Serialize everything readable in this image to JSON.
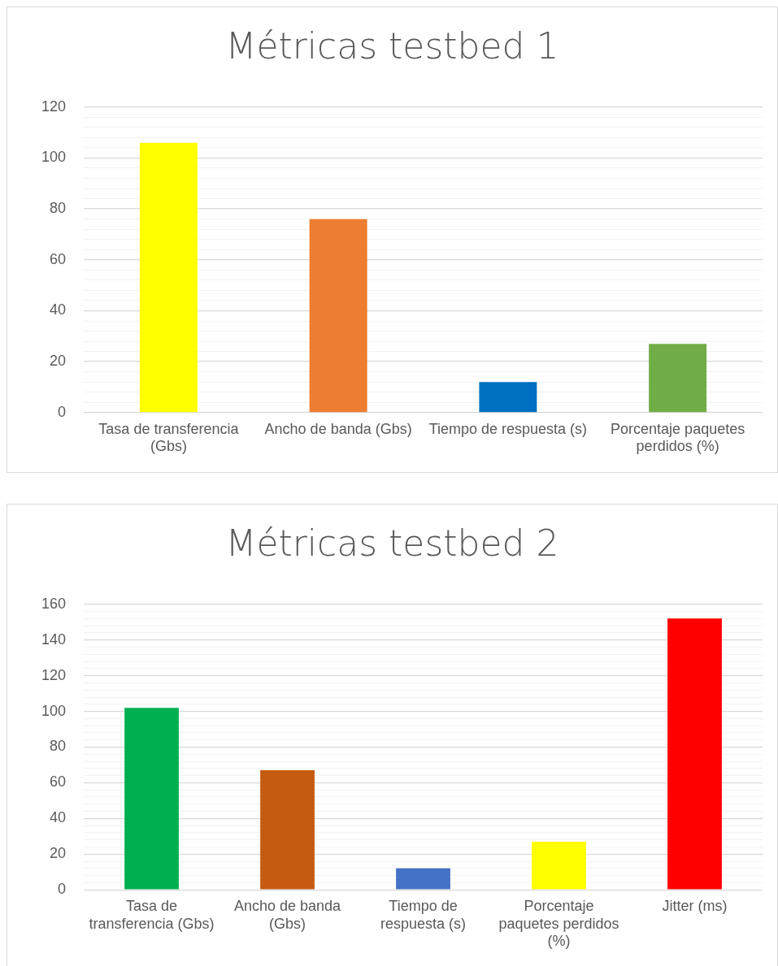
{
  "chart_data": [
    {
      "type": "bar",
      "title": "Métricas testbed 1",
      "categories": [
        "Tasa de transferencia (Gbs)",
        "Ancho de banda (Gbs)",
        "Tiempo de respuesta (s)",
        "Porcentaje paquetes perdidos (%)"
      ],
      "values": [
        106,
        76,
        12,
        27
      ],
      "colors": [
        "#ffff00",
        "#ed7d31",
        "#0070c0",
        "#70ad47"
      ],
      "ylim": [
        0,
        120
      ],
      "yticks": [
        0,
        {
          "value": 4,
          "label": null
        },
        {
          "value": 8,
          "label": null
        },
        {
          "value": 12,
          "label": null
        },
        {
          "value": 16,
          "label": null
        },
        20,
        {
          "value": 24,
          "label": null
        },
        {
          "value": 28,
          "label": null
        },
        {
          "value": 32,
          "label": null
        },
        {
          "value": 36,
          "label": null
        },
        40,
        {
          "value": 44,
          "label": null
        },
        {
          "value": 48,
          "label": null
        },
        {
          "value": 52,
          "label": null
        },
        {
          "value": 56,
          "label": null
        },
        60,
        {
          "value": 64,
          "label": null
        },
        {
          "value": 68,
          "label": null
        },
        {
          "value": 72,
          "label": null
        },
        {
          "value": 76,
          "label": null
        },
        80,
        {
          "value": 84,
          "label": null
        },
        {
          "value": 88,
          "label": null
        },
        {
          "value": 92,
          "label": null
        },
        {
          "value": 96,
          "label": null
        },
        100,
        {
          "value": 104,
          "label": null
        },
        {
          "value": 108,
          "label": null
        },
        {
          "value": 112,
          "label": null
        },
        {
          "value": 116,
          "label": null
        },
        120
      ],
      "grid": "y",
      "legend": false
    },
    {
      "type": "bar",
      "title": "Métricas testbed 2",
      "categories": [
        "Tasa de transferencia (Gbs)",
        "Ancho de banda (Gbs)",
        "Tiempo de respuesta (s)",
        "Porcentaje paquetes perdidos (%)",
        "Jitter (ms)"
      ],
      "values": [
        102,
        67,
        12,
        27,
        152
      ],
      "colors": [
        "#00b050",
        "#c55a11",
        "#4472c4",
        "#ffff00",
        "#ff0000"
      ],
      "ylim": [
        0,
        160
      ],
      "yticks": [
        0,
        {
          "value": 4,
          "label": null
        },
        {
          "value": 8,
          "label": null
        },
        {
          "value": 12,
          "label": null
        },
        {
          "value": 16,
          "label": null
        },
        20,
        {
          "value": 24,
          "label": null
        },
        {
          "value": 28,
          "label": null
        },
        {
          "value": 32,
          "label": null
        },
        {
          "value": 36,
          "label": null
        },
        40,
        {
          "value": 44,
          "label": null
        },
        {
          "value": 48,
          "label": null
        },
        {
          "value": 52,
          "label": null
        },
        {
          "value": 56,
          "label": null
        },
        60,
        {
          "value": 64,
          "label": null
        },
        {
          "value": 68,
          "label": null
        },
        {
          "value": 72,
          "label": null
        },
        {
          "value": 76,
          "label": null
        },
        80,
        {
          "value": 84,
          "label": null
        },
        {
          "value": 88,
          "label": null
        },
        {
          "value": 92,
          "label": null
        },
        {
          "value": 96,
          "label": null
        },
        100,
        {
          "value": 104,
          "label": null
        },
        {
          "value": 108,
          "label": null
        },
        {
          "value": 112,
          "label": null
        },
        {
          "value": 116,
          "label": null
        },
        120,
        {
          "value": 124,
          "label": null
        },
        {
          "value": 128,
          "label": null
        },
        {
          "value": 132,
          "label": null
        },
        {
          "value": 136,
          "label": null
        },
        140,
        {
          "value": 144,
          "label": null
        },
        {
          "value": 148,
          "label": null
        },
        {
          "value": 152,
          "label": null
        },
        {
          "value": 156,
          "label": null
        },
        160
      ],
      "grid": "y",
      "legend": false
    }
  ]
}
